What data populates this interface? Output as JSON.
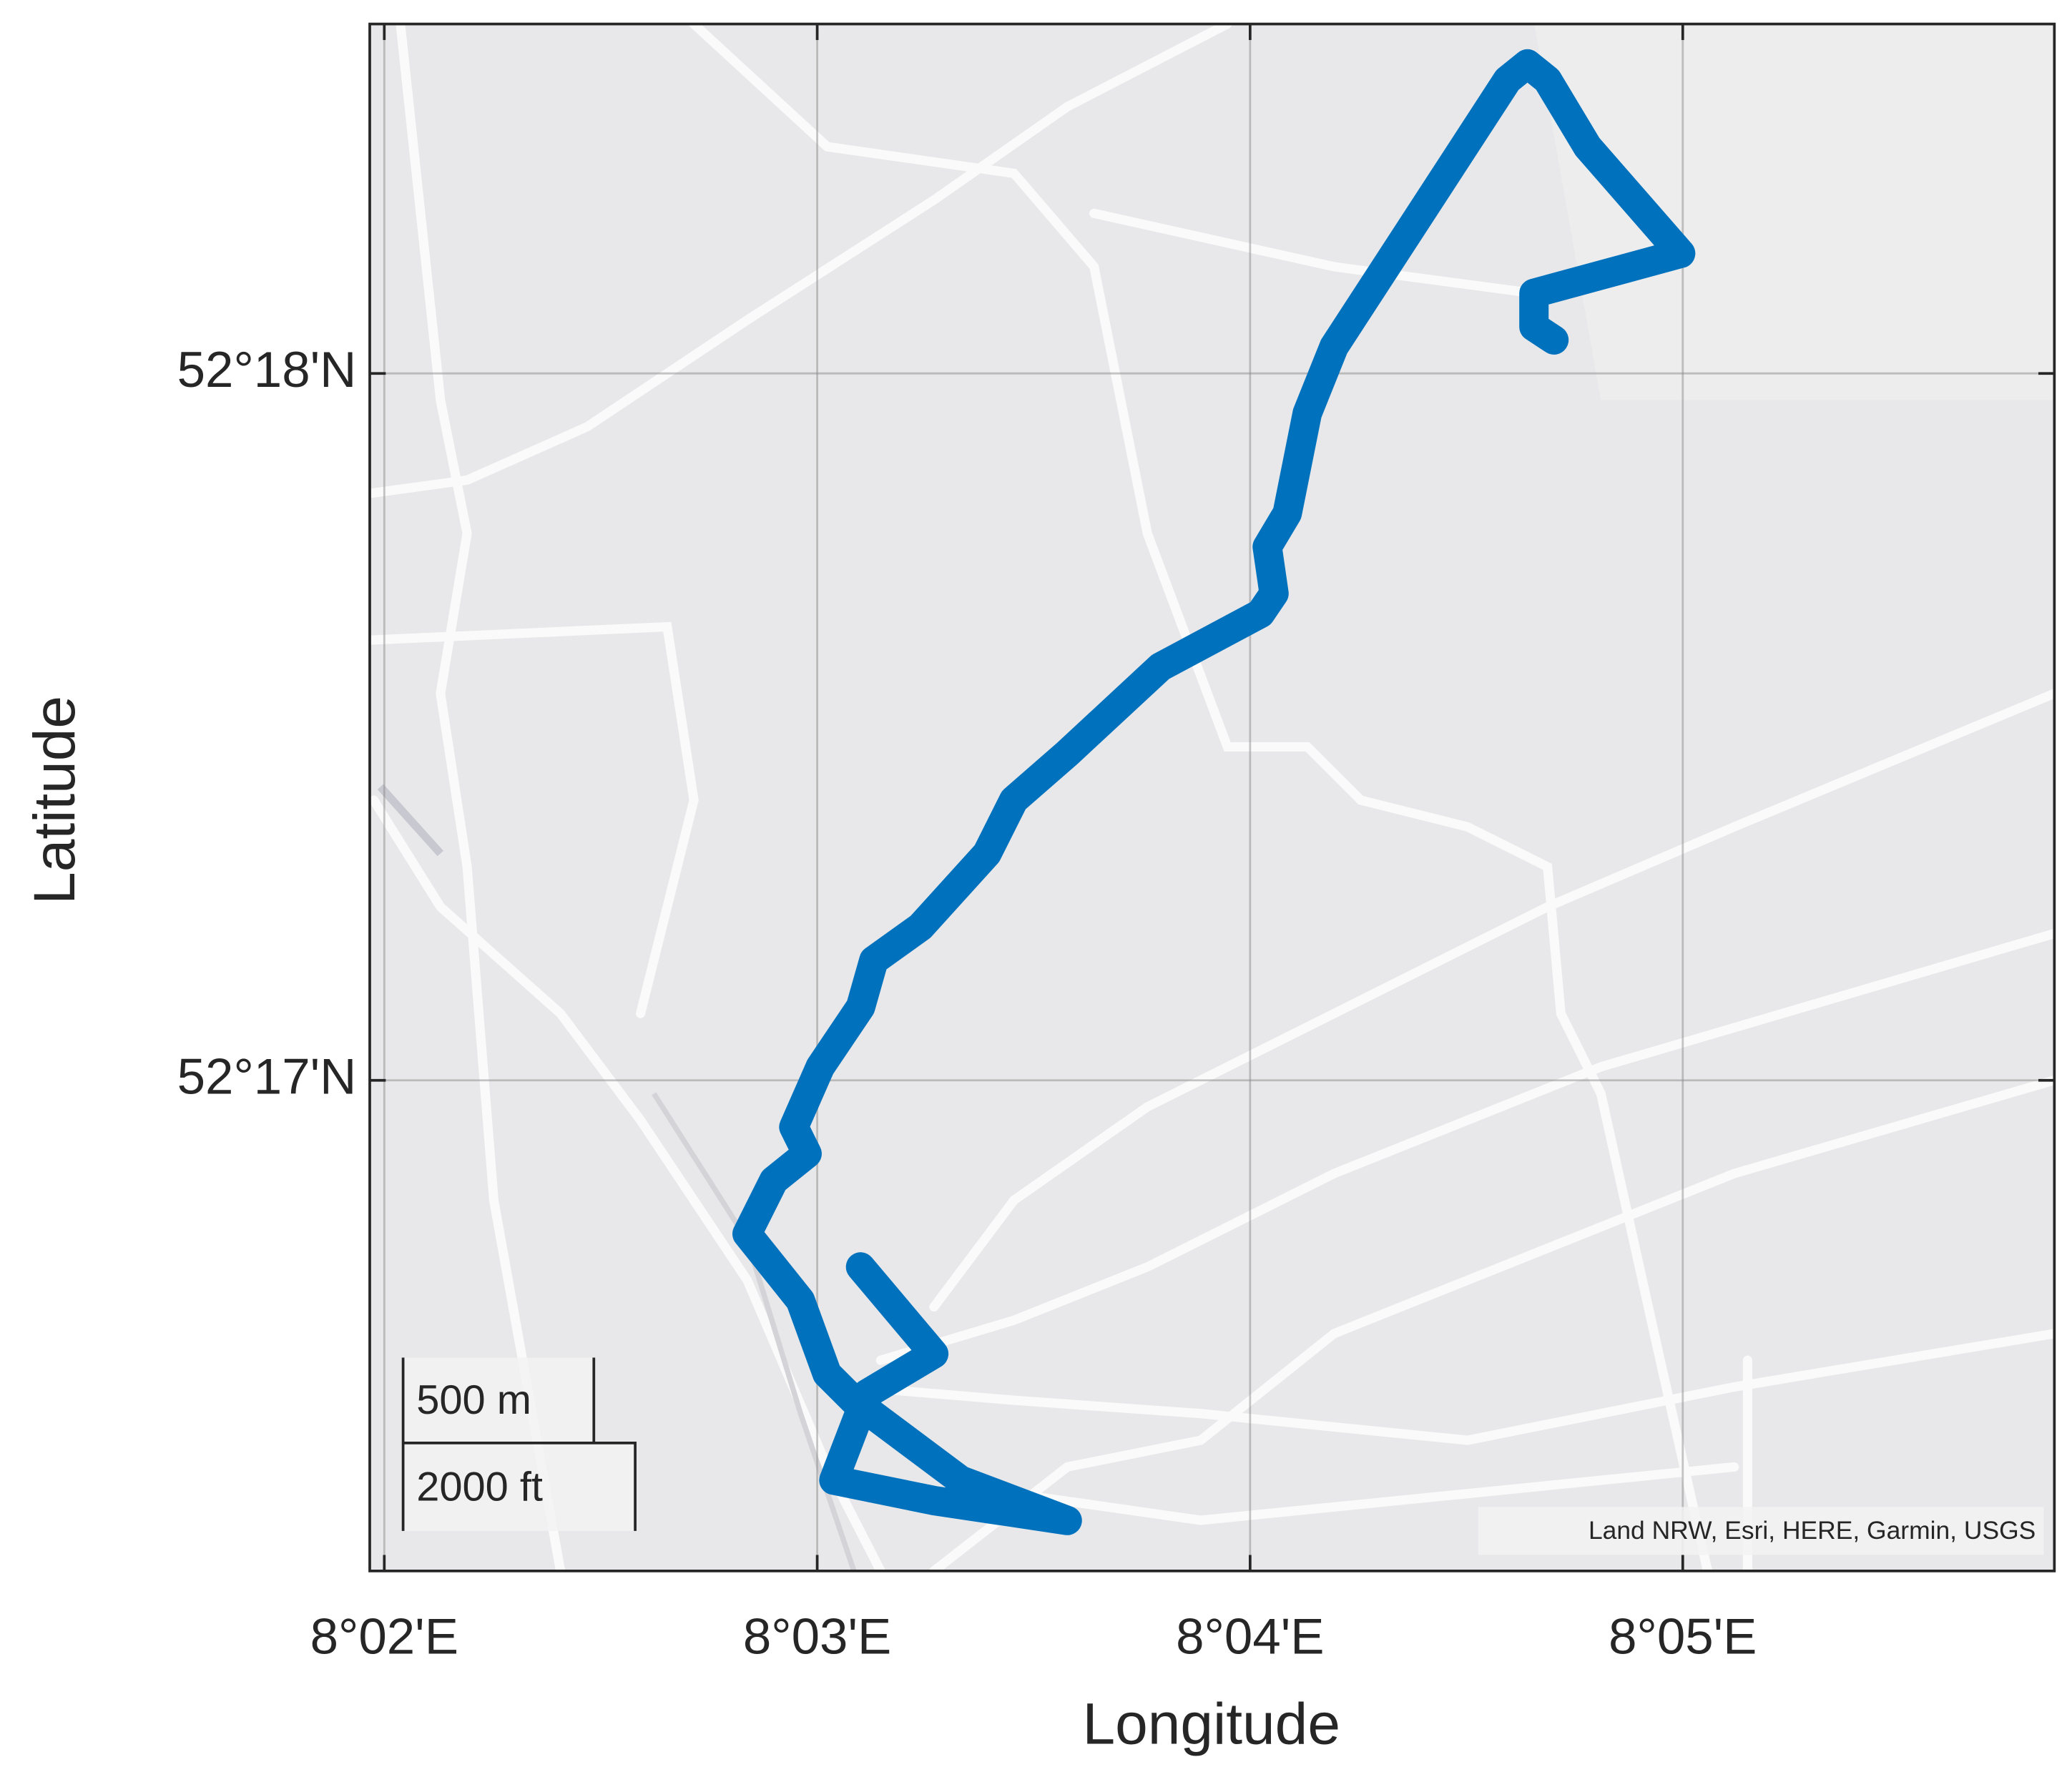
{
  "chart_data": {
    "type": "line",
    "xlabel": "Longitude",
    "ylabel": "Latitude",
    "x": [
      8.05167,
      8.05449,
      8.05192,
      8.05064,
      8.05449,
      8.05963,
      8.05552,
      8.05141,
      8.05038,
      8.04935,
      8.0473,
      8.04833,
      8.04961,
      8.0491,
      8.05012,
      8.05167,
      8.05218,
      8.05398,
      8.05654,
      8.05757,
      8.05963,
      8.06322,
      8.06707,
      8.06759,
      8.06733,
      8.0681,
      8.06887,
      8.0699,
      8.07658,
      8.07735,
      8.07812,
      8.07966,
      8.08325,
      8.0776,
      8.0776,
      8.07837
    ],
    "values": [
      52.27893,
      52.27688,
      52.27594,
      52.2739,
      52.27342,
      52.27295,
      52.2739,
      52.27578,
      52.27641,
      52.27814,
      52.27971,
      52.28097,
      52.2816,
      52.28223,
      52.28365,
      52.28506,
      52.28616,
      52.28695,
      52.28868,
      52.28994,
      52.29104,
      52.29308,
      52.29434,
      52.29481,
      52.29591,
      52.2967,
      52.29906,
      52.30063,
      52.30692,
      52.3073,
      52.30692,
      52.30535,
      52.30283,
      52.30189,
      52.3011,
      52.30079
    ],
    "color": "#0072bd",
    "xlim": [
      8.03277,
      8.09764
    ],
    "ylim": [
      52.27176,
      52.30824
    ],
    "xticks": [
      {
        "value": 8.03333,
        "label": "8°02'E"
      },
      {
        "value": 8.05,
        "label": "8°03'E"
      },
      {
        "value": 8.06667,
        "label": "8°04'E"
      },
      {
        "value": 8.08333,
        "label": "8°05'E"
      }
    ],
    "yticks": [
      {
        "value": 52.28333,
        "label": "52°17'N"
      },
      {
        "value": 52.3,
        "label": "52°18'N"
      }
    ],
    "grid": true,
    "scale_bar": [
      "500 m",
      "2000 ft"
    ],
    "attribution": "Land NRW, Esri, HERE, Garmin, USGS"
  }
}
